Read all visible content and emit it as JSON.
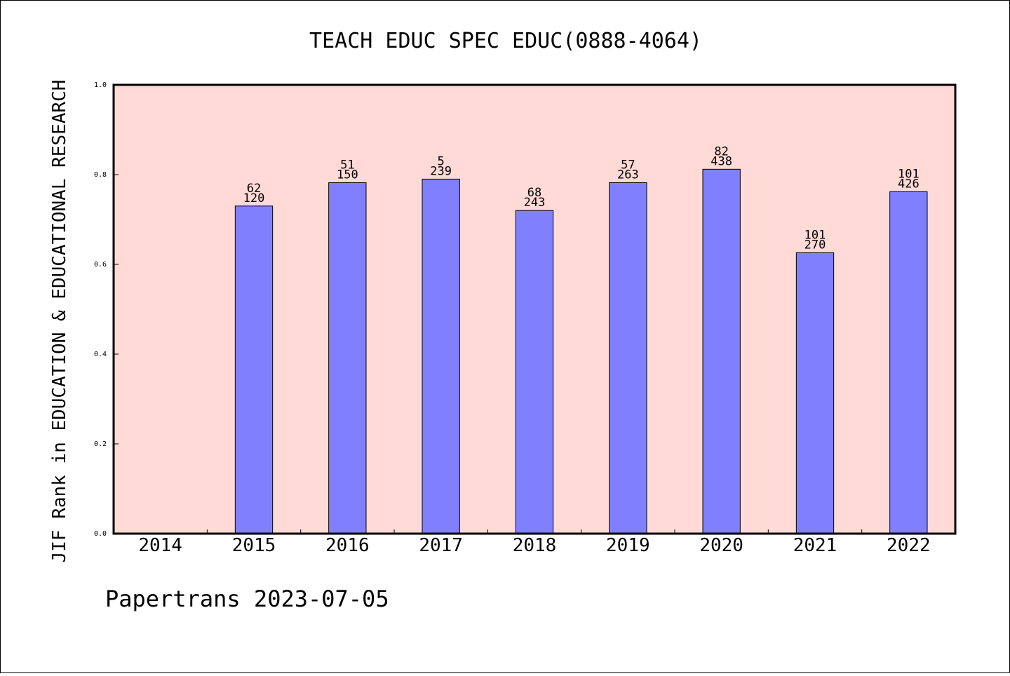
{
  "chart_data": {
    "type": "bar",
    "title": "TEACH EDUC SPEC EDUC(0888-4064)",
    "ylabel": "JIF Rank in EDUCATION & EDUCATIONAL RESEARCH",
    "xlabel": "",
    "ylim": [
      0,
      1.0
    ],
    "yticks": [
      "0.0",
      "0.2",
      "0.4",
      "0.6",
      "0.8",
      "1.0"
    ],
    "grid": false,
    "categories": [
      "2014",
      "2015",
      "2016",
      "2017",
      "2018",
      "2019",
      "2020",
      "2021",
      "2022"
    ],
    "values": [
      null,
      0.73,
      0.782,
      0.79,
      0.72,
      0.782,
      0.812,
      0.626,
      0.762
    ],
    "rank_labels": [
      "",
      "62",
      "51",
      "5",
      "68",
      "57",
      "82",
      "101",
      "101"
    ],
    "total_labels": [
      "",
      "120",
      "150",
      "239",
      "243",
      "263",
      "438",
      "270",
      "426"
    ],
    "colors": {
      "plot_background": "#ffdad6",
      "bar": "#8080ff",
      "axis": "#000000"
    }
  },
  "footer": "Papertrans 2023-07-05"
}
